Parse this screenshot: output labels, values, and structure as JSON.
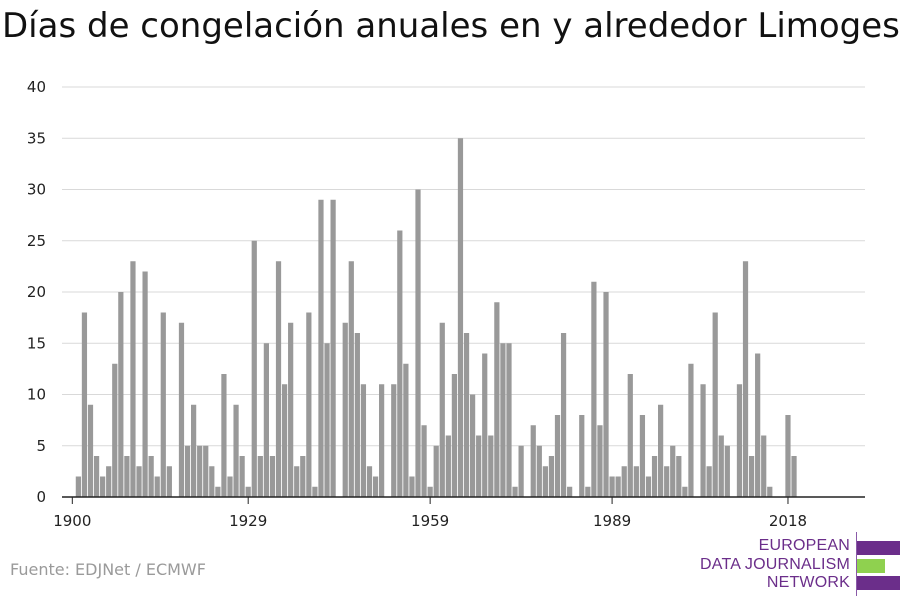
{
  "chart_data": {
    "type": "bar",
    "title": "Días de congelación anuales en y alrededor Limoges",
    "xlabel": "",
    "ylabel": "",
    "ylim": [
      0,
      40
    ],
    "yticks": [
      0,
      5,
      10,
      15,
      20,
      25,
      30,
      35,
      40
    ],
    "xticks": [
      1900,
      1929,
      1959,
      1989,
      2018
    ],
    "grid": true,
    "bar_color": "#999999",
    "categories": [
      1900,
      1901,
      1902,
      1903,
      1904,
      1905,
      1906,
      1907,
      1908,
      1909,
      1910,
      1911,
      1912,
      1913,
      1914,
      1915,
      1916,
      1917,
      1918,
      1919,
      1920,
      1921,
      1922,
      1923,
      1924,
      1925,
      1926,
      1927,
      1928,
      1929,
      1930,
      1931,
      1932,
      1933,
      1934,
      1935,
      1936,
      1937,
      1938,
      1939,
      1940,
      1941,
      1942,
      1943,
      1944,
      1945,
      1946,
      1947,
      1948,
      1949,
      1950,
      1951,
      1952,
      1953,
      1954,
      1955,
      1956,
      1957,
      1958,
      1959,
      1960,
      1961,
      1962,
      1963,
      1964,
      1965,
      1966,
      1967,
      1968,
      1969,
      1970,
      1971,
      1972,
      1973,
      1974,
      1975,
      1976,
      1977,
      1978,
      1979,
      1980,
      1981,
      1982,
      1983,
      1984,
      1985,
      1986,
      1987,
      1988,
      1989,
      1990,
      1991,
      1992,
      1993,
      1994,
      1995,
      1996,
      1997,
      1998,
      1999,
      2000,
      2001,
      2002,
      2003,
      2004,
      2005,
      2006,
      2007,
      2008,
      2009,
      2010,
      2011,
      2012,
      2013,
      2014,
      2015,
      2016,
      2017,
      2018,
      2019
    ],
    "values": [
      0,
      2,
      18,
      9,
      4,
      2,
      3,
      13,
      20,
      4,
      23,
      3,
      22,
      4,
      2,
      18,
      3,
      0,
      17,
      5,
      9,
      5,
      5,
      3,
      1,
      12,
      2,
      9,
      4,
      1,
      25,
      4,
      15,
      4,
      23,
      11,
      17,
      3,
      4,
      18,
      1,
      29,
      15,
      29,
      0,
      17,
      23,
      16,
      11,
      3,
      2,
      11,
      0,
      11,
      26,
      13,
      2,
      30,
      7,
      1,
      5,
      17,
      6,
      12,
      35,
      16,
      10,
      6,
      14,
      6,
      19,
      15,
      15,
      1,
      5,
      0,
      7,
      5,
      3,
      4,
      8,
      16,
      1,
      0,
      8,
      1,
      21,
      7,
      20,
      2,
      2,
      3,
      12,
      3,
      8,
      2,
      4,
      9,
      3,
      5,
      4,
      1,
      13,
      0,
      11,
      3,
      18,
      6,
      5,
      0,
      11,
      23,
      4,
      14,
      6,
      1,
      0,
      0,
      8,
      4
    ]
  },
  "source": "Fuente: EDJNet / ECMWF",
  "logo": {
    "lines": [
      "EUROPEAN",
      "DATA JOURNALISM",
      "NETWORK"
    ],
    "colors": {
      "purple": "#6b2e8a",
      "green": "#8fd14f"
    }
  }
}
